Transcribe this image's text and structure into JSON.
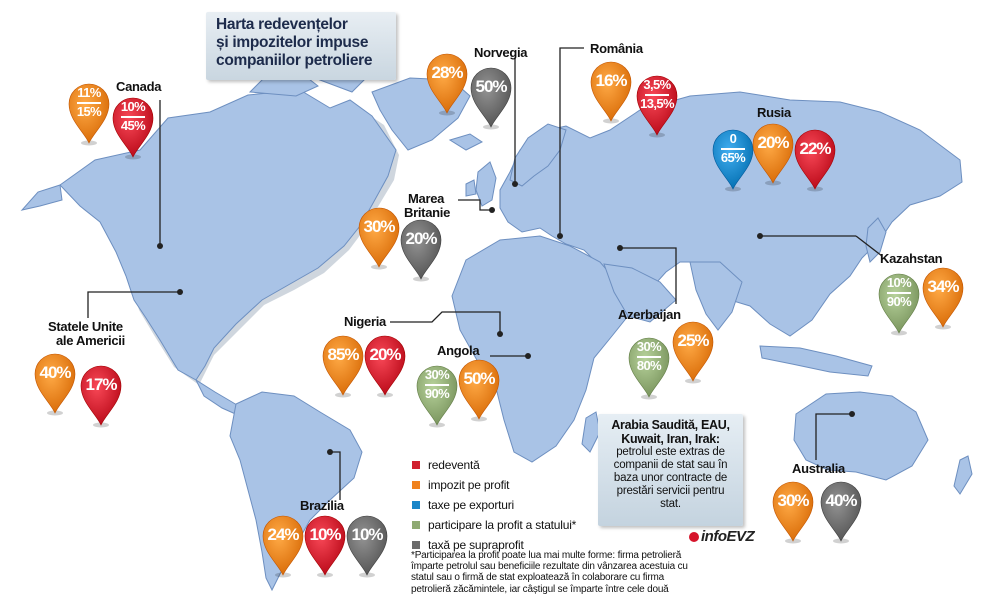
{
  "title": {
    "line1": "Harta redevențelor",
    "line2": "și impozitelor impuse",
    "line3": "companiilor petroliere"
  },
  "colors": {
    "redeventa": "#d0202f",
    "impozit_profit": "#f0821e",
    "taxe_export": "#1a86c8",
    "participare": "#8faa73",
    "supraprofit": "#6b6b6b"
  },
  "countries": {
    "canada": "Canada",
    "norvegia": "Norvegia",
    "romania": "România",
    "rusia": "Rusia",
    "marea_britanie_1": "Marea",
    "marea_britanie_2": "Britanie",
    "kazahstan": "Kazahstan",
    "sua_1": "Statele Unite",
    "sua_2": "ale Americii",
    "nigeria": "Nigeria",
    "angola": "Angola",
    "azerbaijan": "Azerbaijan",
    "brazilia": "Brazilia",
    "australia": "Australia"
  },
  "pins": {
    "canada_a1": "11%",
    "canada_a2": "15%",
    "canada_b1": "10%",
    "canada_b2": "45%",
    "norvegia_a": "28%",
    "norvegia_b": "50%",
    "romania_a": "16%",
    "romania_b1": "3,5%",
    "romania_b2": "13,5%",
    "rusia_a1": "0",
    "rusia_a2": "65%",
    "rusia_b": "20%",
    "rusia_c": "22%",
    "uk_a": "30%",
    "uk_b": "20%",
    "kazahstan_a1": "10%",
    "kazahstan_a2": "90%",
    "kazahstan_b": "34%",
    "sua_a": "40%",
    "sua_b": "17%",
    "nigeria_a": "85%",
    "nigeria_b": "20%",
    "angola_a1": "30%",
    "angola_a2": "90%",
    "angola_b": "50%",
    "azerbaijan_a1": "30%",
    "azerbaijan_a2": "80%",
    "azerbaijan_b": "25%",
    "brazilia_a": "24%",
    "brazilia_b": "10%",
    "brazilia_c": "10%",
    "australia_a": "30%",
    "australia_b": "40%"
  },
  "legend": [
    {
      "label": "redeventă"
    },
    {
      "label": "impozit pe profit"
    },
    {
      "label": "taxe pe exporturi"
    },
    {
      "label": "participare la profit a statului*"
    },
    {
      "label": "taxă pe supraprofit"
    }
  ],
  "arabia": {
    "title1": "Arabia Saudită, EAU,",
    "title2": "Kuwait, Iran, Irak:",
    "body1": "petrolul este extras de",
    "body2": "companii de stat sau în",
    "body3": "baza unor contracte de",
    "body4": "prestări servicii pentru",
    "body5": "stat."
  },
  "logo": "infoEVZ",
  "note": {
    "l1": "*Participarea la profit poate lua mai multe forme: firma petrolieră",
    "l2": "împarte petrolul sau beneficiile rezultate din vânzarea acestuia cu",
    "l3": "statul sau o firmă de stat exploatează în colaborare cu firma",
    "l4": "petrolieră zăcămintele, iar câștigul se împarte între cele două"
  }
}
